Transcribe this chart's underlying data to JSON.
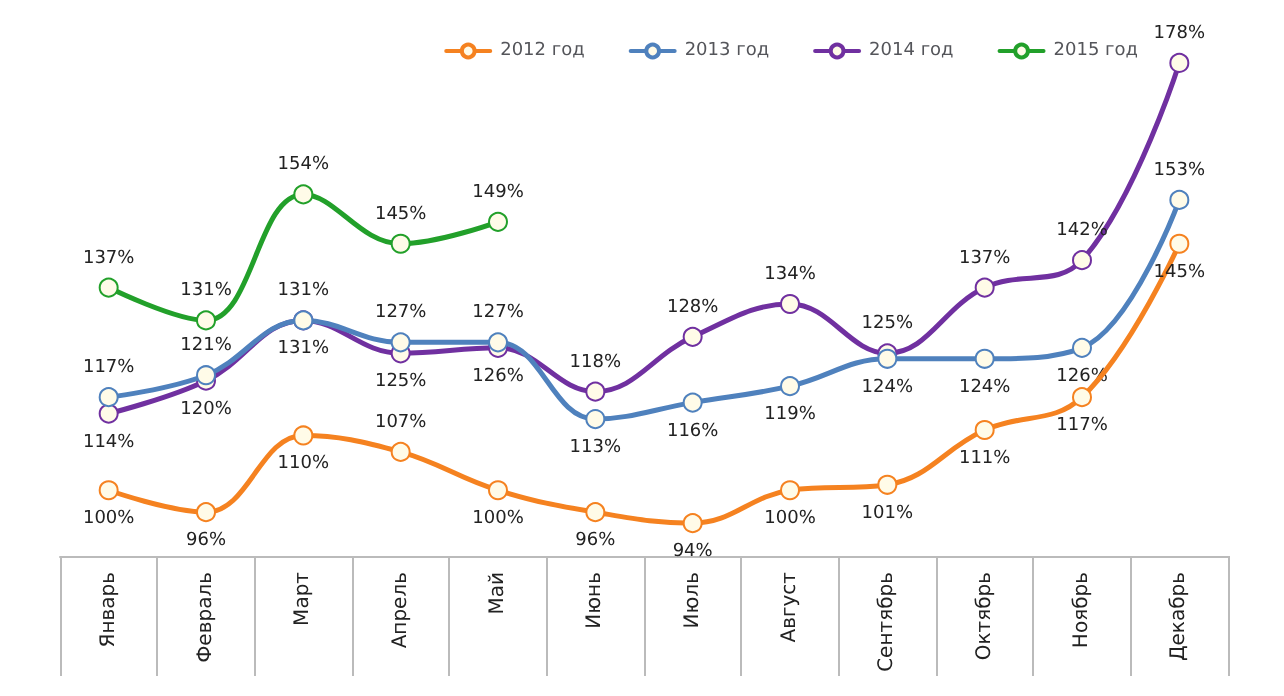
{
  "chart_data": {
    "type": "line",
    "categories": [
      "Январь",
      "Февраль",
      "Март",
      "Апрель",
      "Май",
      "Июнь",
      "Июль",
      "Август",
      "Сентябрь",
      "Октябрь",
      "Ноябрь",
      "Декабрь"
    ],
    "series": [
      {
        "name": "2012 год",
        "color": "#f58220",
        "values": [
          100,
          96,
          110,
          107,
          100,
          96,
          94,
          100,
          101,
          111,
          117,
          145
        ],
        "value_labels": [
          "100%",
          "96%",
          "110%",
          "107%",
          "100%",
          "96%",
          "94%",
          "100%",
          "101%",
          "111%",
          "117%",
          "145%"
        ]
      },
      {
        "name": "2013 год",
        "color": "#4f81bd",
        "values": [
          117,
          121,
          131,
          127,
          127,
          113,
          116,
          119,
          124,
          124,
          126,
          153
        ],
        "value_labels": [
          "117%",
          "121%",
          "131%",
          "127%",
          "127%",
          "113%",
          "116%",
          "119%",
          "124%",
          "124%",
          "126%",
          "153%"
        ]
      },
      {
        "name": "2014 год",
        "color": "#7030a0",
        "values": [
          114,
          120,
          131,
          125,
          126,
          118,
          128,
          134,
          125,
          137,
          142,
          178
        ],
        "value_labels": [
          "114%",
          "120%",
          "131%",
          "125%",
          "126%",
          "118%",
          "128%",
          "134%",
          "125%",
          "137%",
          "142%",
          "178%"
        ]
      },
      {
        "name": "2015 год",
        "color": "#22a02a",
        "values": [
          137,
          131,
          154,
          145,
          149,
          null,
          null,
          null,
          null,
          null,
          null,
          null
        ],
        "value_labels": [
          "137%",
          "131%",
          "154%",
          "145%",
          "149%",
          null,
          null,
          null,
          null,
          null,
          null,
          null
        ]
      }
    ],
    "marker": "circle",
    "line_style": "solid",
    "legend": "top right",
    "grid": false
  }
}
